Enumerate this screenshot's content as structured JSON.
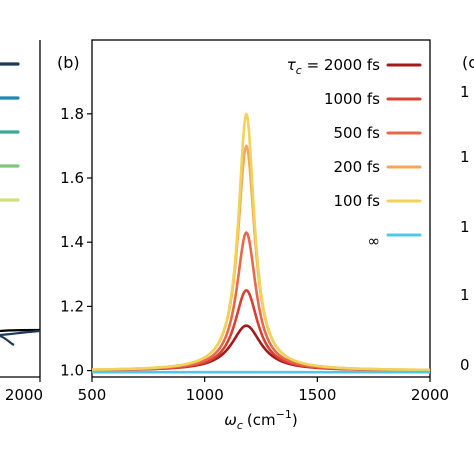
{
  "chart_data": {
    "type": "line",
    "panel_label": "(b)",
    "xlabel_symbol": "ω",
    "xlabel_sub": "c",
    "xlabel_unit": "(cm",
    "xlabel_unit_exp": "−1",
    "xlabel_unit_close": ")",
    "xlim": [
      500,
      2000
    ],
    "ylim": [
      0.98,
      2.03
    ],
    "xticks": [
      500,
      1000,
      1500,
      2000
    ],
    "xtick_labels": [
      "500",
      "1000",
      "1500",
      "2000"
    ],
    "yticks": [
      1.0,
      1.2,
      1.4,
      1.6,
      1.8
    ],
    "ytick_labels": [
      "1.0",
      "1.2",
      "1.4",
      "1.6",
      "1.8"
    ],
    "legend_placement": "top-right",
    "legend_prefix": "τ",
    "legend_prefix_sub": "c",
    "legend_prefix_eq": " = ",
    "peak_center": 1185,
    "series": [
      {
        "name": "2000 fs",
        "color": "#a41a1b",
        "peak": 1.14,
        "width": 80
      },
      {
        "name": "1000 fs",
        "color": "#d94032",
        "peak": 1.25,
        "width": 62
      },
      {
        "name": "500 fs",
        "color": "#e8694a",
        "peak": 1.43,
        "width": 52
      },
      {
        "name": "200 fs",
        "color": "#f1a95a",
        "peak": 1.7,
        "width": 46
      },
      {
        "name": "100 fs",
        "color": "#f2d35a",
        "peak": 1.8,
        "width": 43
      },
      {
        "name": "∞",
        "color": "#4fc8e8",
        "flat": 0.995
      }
    ]
  },
  "left_panel": {
    "xtick_label": "2000",
    "legend_colors": [
      "#1b3a5a",
      "#1f86b5",
      "#3aa89a",
      "#7ec77a",
      "#cde07a"
    ],
    "curve_colors": [
      "#000000",
      "#1b3a5a"
    ]
  },
  "right_panel": {
    "panel_label_partial": "(c",
    "tick_fragments": [
      "1",
      "1",
      "1",
      "1",
      "0"
    ]
  }
}
